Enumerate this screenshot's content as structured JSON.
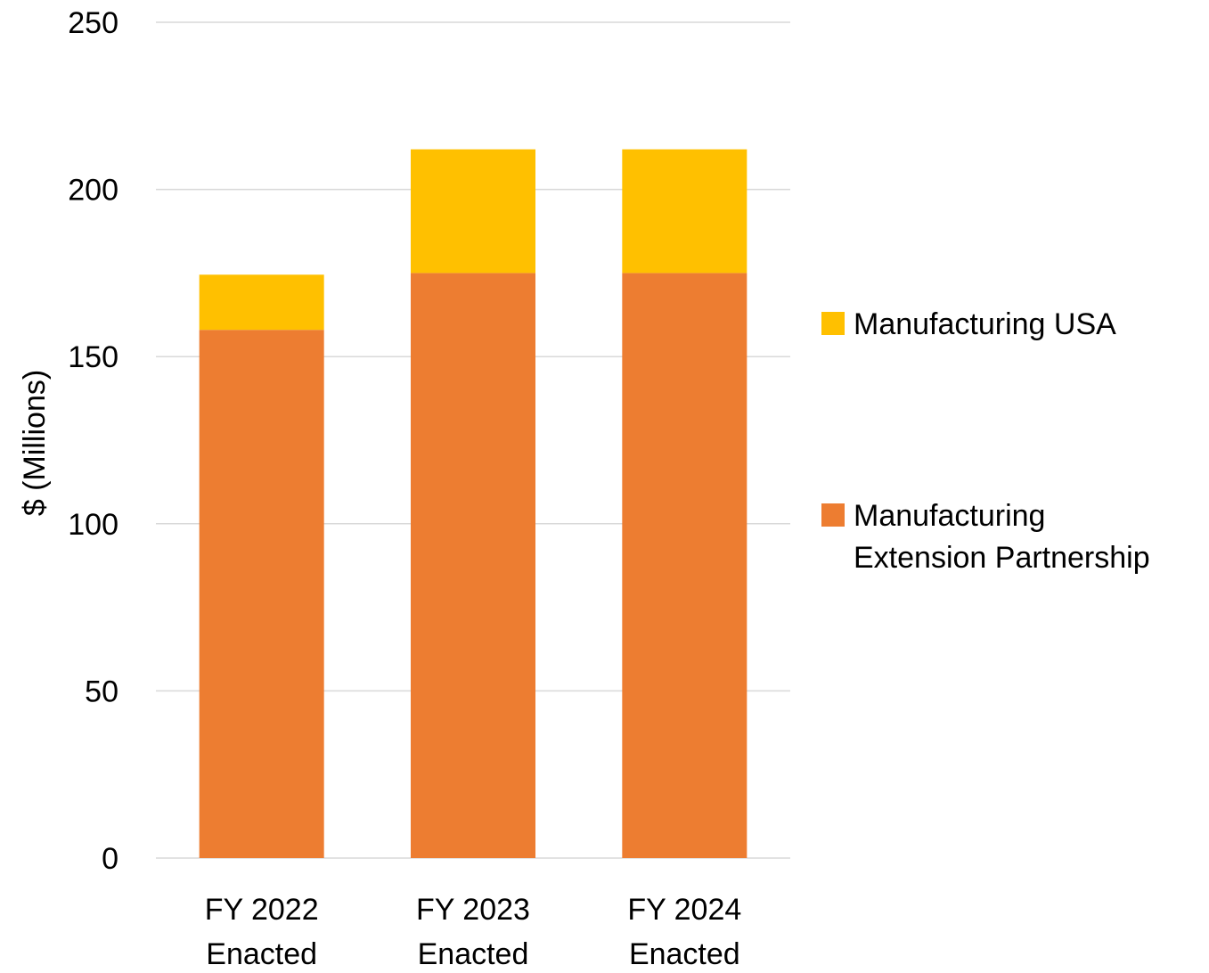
{
  "chart_data": {
    "type": "bar",
    "stacked": true,
    "title": "",
    "xlabel": "",
    "ylabel": "$ (Millions)",
    "ylim": [
      0,
      250
    ],
    "yticks": [
      0,
      50,
      100,
      150,
      200,
      250
    ],
    "grid": true,
    "legend_position": "right",
    "categories": [
      [
        "FY 2022",
        "Enacted"
      ],
      [
        "FY 2023",
        "Enacted"
      ],
      [
        "FY 2024",
        "Enacted"
      ]
    ],
    "series": [
      {
        "name": "Manufacturing Extension Partnership",
        "color": "#ED7D31",
        "values": [
          158,
          175,
          175
        ]
      },
      {
        "name": "Manufacturing USA",
        "color": "#FFC000",
        "values": [
          16.5,
          37,
          37
        ]
      }
    ],
    "legend": [
      {
        "lines": [
          "Manufacturing USA"
        ],
        "color": "#FFC000"
      },
      {
        "lines": [
          "Manufacturing",
          "Extension Partnership"
        ],
        "color": "#ED7D31"
      }
    ]
  }
}
